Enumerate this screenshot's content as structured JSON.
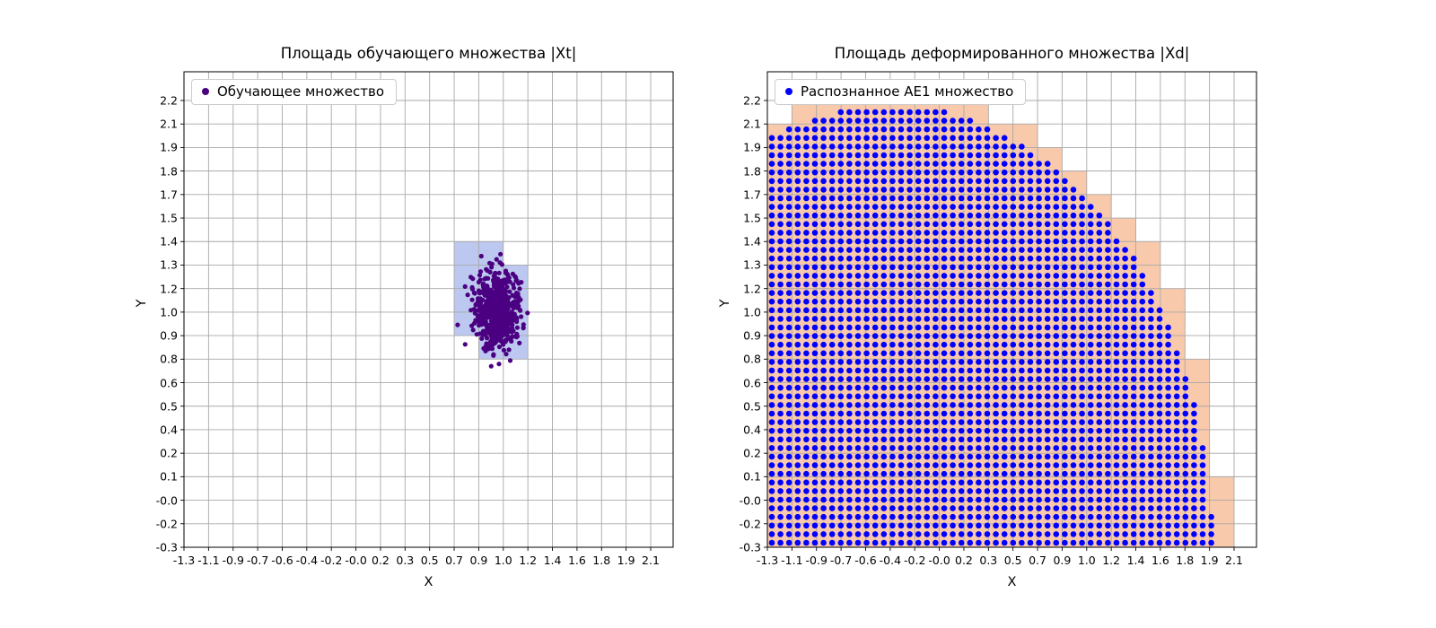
{
  "figure": {
    "background": "#ffffff"
  },
  "chart_data": [
    {
      "type": "scatter",
      "title": "Площадь обучающего множества |Xt|",
      "xlabel": "X",
      "ylabel": "Y",
      "x_ticks": [
        "-1.3",
        "-1.1",
        "-0.9",
        "-0.7",
        "-0.6",
        "-0.4",
        "-0.2",
        "-0.0",
        "0.2",
        "0.3",
        "0.5",
        "0.7",
        "0.9",
        "1.0",
        "1.2",
        "1.4",
        "1.6",
        "1.8",
        "1.9",
        "2.1"
      ],
      "y_ticks": [
        "-0.3",
        "-0.2",
        "-0.0",
        "0.1",
        "0.2",
        "0.4",
        "0.5",
        "0.6",
        "0.8",
        "0.9",
        "1.0",
        "1.2",
        "1.3",
        "1.4",
        "1.5",
        "1.7",
        "1.8",
        "1.9",
        "2.1",
        "2.2"
      ],
      "xlim": [
        -1.3,
        2.26
      ],
      "ylim": [
        -0.3,
        2.36
      ],
      "grid": true,
      "grid_color": "#a8a8a8",
      "legend": {
        "label": "Обучающее множество",
        "position": "upper left",
        "marker_color": "#4b0082"
      },
      "series": [
        {
          "name": "Обучающее множество",
          "marker": "circle",
          "color": "#4b0082",
          "radius": 2.6,
          "distribution": {
            "kind": "gaussian-cluster",
            "center": [
              0.97,
              1.02
            ],
            "std": [
              0.082,
              0.1
            ],
            "count": 650,
            "seed": 20240217
          }
        }
      ],
      "highlight_cells": {
        "fill": "#bcc8f0",
        "cells": [
          [
            11,
            12
          ],
          [
            12,
            12
          ],
          [
            11,
            11
          ],
          [
            12,
            11
          ],
          [
            13,
            11
          ],
          [
            11,
            10
          ],
          [
            12,
            10
          ],
          [
            13,
            10
          ],
          [
            11,
            9
          ],
          [
            12,
            9
          ],
          [
            13,
            9
          ],
          [
            12,
            8
          ],
          [
            13,
            8
          ]
        ]
      }
    },
    {
      "type": "scatter",
      "title": "Площадь деформированного множества |Xd|",
      "xlabel": "X",
      "ylabel": "Y",
      "x_ticks": [
        "-1.3",
        "-1.1",
        "-0.9",
        "-0.7",
        "-0.6",
        "-0.4",
        "-0.2",
        "-0.0",
        "0.2",
        "0.3",
        "0.5",
        "0.7",
        "0.9",
        "1.0",
        "1.2",
        "1.4",
        "1.6",
        "1.8",
        "1.9",
        "2.1"
      ],
      "y_ticks": [
        "-0.3",
        "-0.2",
        "-0.0",
        "0.1",
        "0.2",
        "0.4",
        "0.5",
        "0.6",
        "0.8",
        "0.9",
        "1.0",
        "1.2",
        "1.3",
        "1.4",
        "1.5",
        "1.7",
        "1.8",
        "1.9",
        "2.1",
        "2.2"
      ],
      "xlim": [
        -1.3,
        2.26
      ],
      "ylim": [
        -0.3,
        2.36
      ],
      "grid": true,
      "grid_color": "#a8a8a8",
      "legend": {
        "label": "Распознанное AE1 множество",
        "position": "upper left",
        "marker_color": "#0000ff"
      },
      "series": [
        {
          "name": "Распознанное AE1 множество",
          "marker": "circle",
          "color": "#0000ff",
          "radius": 3.3,
          "distribution": {
            "kind": "grid-in-ellipse",
            "center": [
              -0.4,
              -0.3
            ],
            "rx": 2.34,
            "ry": 2.47,
            "pixel_spacing": 9.6
          }
        }
      ],
      "highlight_region": {
        "fill": "#f9c9ab",
        "rule": "grid-cells-overlapping-ellipse"
      }
    }
  ]
}
